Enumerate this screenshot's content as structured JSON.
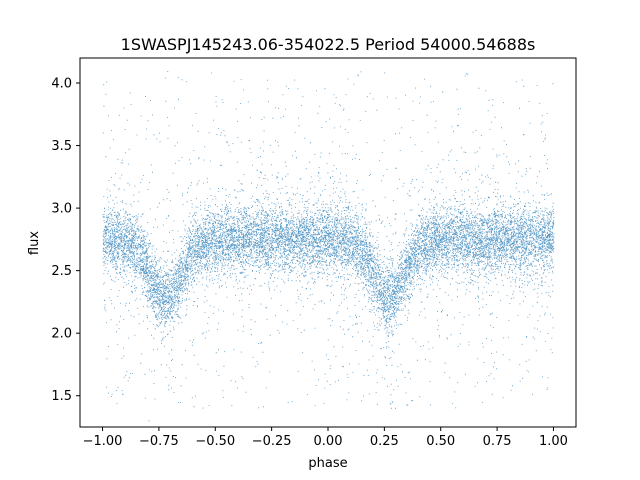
{
  "chart_data": {
    "type": "scatter",
    "title": "1SWASPJ145243.06-354022.5 Period 54000.54688s",
    "xlabel": "phase",
    "ylabel": "flux",
    "xlim": [
      -1.1,
      1.1
    ],
    "ylim": [
      1.25,
      4.2
    ],
    "xticks": [
      -1.0,
      -0.75,
      -0.5,
      -0.25,
      0.0,
      0.25,
      0.5,
      0.75,
      1.0
    ],
    "xtick_labels": [
      "−1.00",
      "−0.75",
      "−0.50",
      "−0.25",
      "0.00",
      "0.25",
      "0.50",
      "0.75",
      "1.00"
    ],
    "yticks": [
      1.5,
      2.0,
      2.5,
      3.0,
      3.5,
      4.0
    ],
    "ytick_labels": [
      "1.5",
      "2.0",
      "2.5",
      "3.0",
      "3.5",
      "4.0"
    ],
    "grid": false,
    "point_color": "#1f77b4",
    "light_curve": {
      "phase_range": [
        -1.0,
        1.0
      ],
      "baseline_flux": 2.75,
      "baseline_spread": 0.13,
      "dips": [
        {
          "phase": -0.72,
          "min_flux": 2.28,
          "width": 0.07
        },
        {
          "phase": 0.27,
          "min_flux": 2.28,
          "width": 0.07
        }
      ],
      "outlier_range": [
        1.4,
        4.1
      ]
    }
  }
}
